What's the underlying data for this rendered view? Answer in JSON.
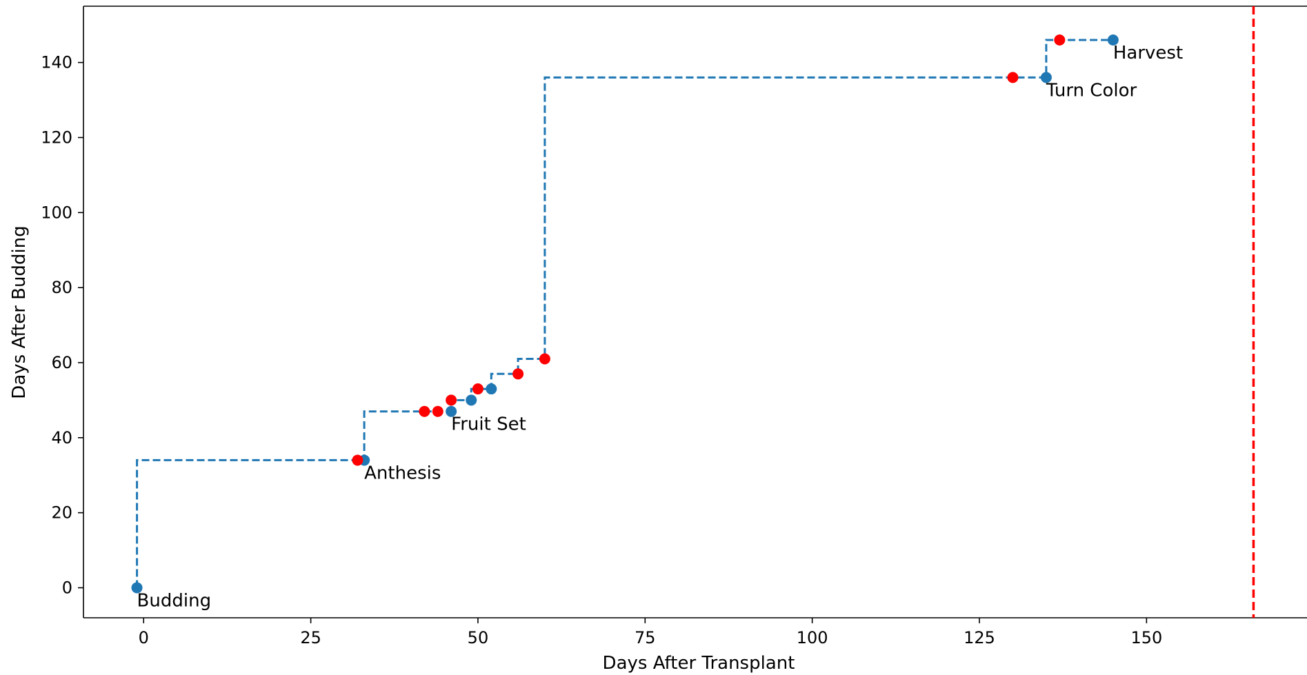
{
  "chart_data": {
    "type": "scatter",
    "xlabel": "Days After Transplant",
    "ylabel": "Days After Budding",
    "xlim": [
      -9,
      174
    ],
    "ylim": [
      -8,
      155
    ],
    "x_ticks": [
      0,
      25,
      50,
      75,
      100,
      125,
      150
    ],
    "y_ticks": [
      0,
      20,
      40,
      60,
      80,
      100,
      120,
      140
    ],
    "grid": false,
    "colors": {
      "blue": "#1f77b4",
      "red": "#ff0000",
      "axis": "#000000"
    },
    "step_line": {
      "style": "dashed",
      "points": [
        [
          -1,
          0
        ],
        [
          -1,
          34
        ],
        [
          33,
          34
        ],
        [
          33,
          47
        ],
        [
          46,
          47
        ],
        [
          46,
          50
        ],
        [
          49,
          50
        ],
        [
          49,
          53
        ],
        [
          52,
          53
        ],
        [
          52,
          57
        ],
        [
          56,
          57
        ],
        [
          56,
          61
        ],
        [
          60,
          61
        ],
        [
          60,
          136
        ],
        [
          135,
          136
        ],
        [
          135,
          146
        ],
        [
          145,
          146
        ]
      ]
    },
    "series": [
      {
        "color": "#1f77b4",
        "points": [
          {
            "x": -1,
            "y": 0
          },
          {
            "x": 33,
            "y": 34
          },
          {
            "x": 46,
            "y": 47
          },
          {
            "x": 49,
            "y": 50
          },
          {
            "x": 52,
            "y": 53
          },
          {
            "x": 135,
            "y": 136
          },
          {
            "x": 145,
            "y": 146
          }
        ]
      },
      {
        "color": "#ff0000",
        "points": [
          {
            "x": 32,
            "y": 34
          },
          {
            "x": 42,
            "y": 47
          },
          {
            "x": 44,
            "y": 47
          },
          {
            "x": 46,
            "y": 50
          },
          {
            "x": 50,
            "y": 53
          },
          {
            "x": 56,
            "y": 57
          },
          {
            "x": 60,
            "y": 61
          },
          {
            "x": 130,
            "y": 136
          },
          {
            "x": 137,
            "y": 146
          }
        ]
      }
    ],
    "annotations": [
      {
        "text": "Budding",
        "x": -1,
        "y": 0
      },
      {
        "text": "Anthesis",
        "x": 33,
        "y": 34
      },
      {
        "text": "Fruit Set",
        "x": 46,
        "y": 47
      },
      {
        "text": "Turn Color",
        "x": 135,
        "y": 136
      },
      {
        "text": "Harvest",
        "x": 145,
        "y": 146
      }
    ],
    "vline": {
      "x": 166,
      "color": "#ff0000",
      "style": "dashed"
    }
  }
}
